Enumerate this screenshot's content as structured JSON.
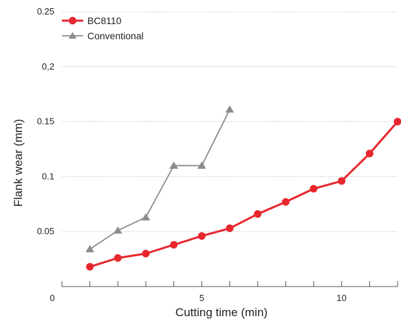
{
  "chart_data": {
    "type": "line",
    "title": "",
    "xlabel": "Cutting time (min)",
    "ylabel": "Flank wear (mm)",
    "xlim": [
      0,
      12
    ],
    "ylim": [
      0,
      0.25
    ],
    "grid": "horizontal dotted",
    "legend_position": "top-left",
    "x_ticks": [
      {
        "value": 0,
        "label": "0"
      },
      {
        "value": 5,
        "label": "5"
      },
      {
        "value": 10,
        "label": "10"
      }
    ],
    "x_minor_ticks": [
      1,
      2,
      3,
      4,
      5,
      6,
      7,
      8,
      9,
      10,
      11,
      12
    ],
    "y_ticks": [
      {
        "value": 0.05,
        "label": "0.05"
      },
      {
        "value": 0.1,
        "label": "0.1"
      },
      {
        "value": 0.15,
        "label": "0.15"
      },
      {
        "value": 0.2,
        "label": "0,2"
      },
      {
        "value": 0.25,
        "label": "0.25"
      }
    ],
    "series": [
      {
        "name": "BC8110",
        "color": "#e8262d",
        "marker": "circle",
        "x": [
          1,
          2,
          3,
          4,
          5,
          6,
          7,
          8,
          9,
          10,
          11,
          12
        ],
        "y": [
          0.018,
          0.026,
          0.03,
          0.038,
          0.046,
          0.053,
          0.066,
          0.077,
          0.089,
          0.096,
          0.121,
          0.15
        ]
      },
      {
        "name": "Conventional",
        "color": "#8c8c8c",
        "marker": "triangle",
        "x": [
          1,
          2,
          3,
          4,
          5,
          6
        ],
        "y": [
          0.034,
          0.051,
          0.063,
          0.11,
          0.11,
          0.161
        ]
      }
    ]
  }
}
